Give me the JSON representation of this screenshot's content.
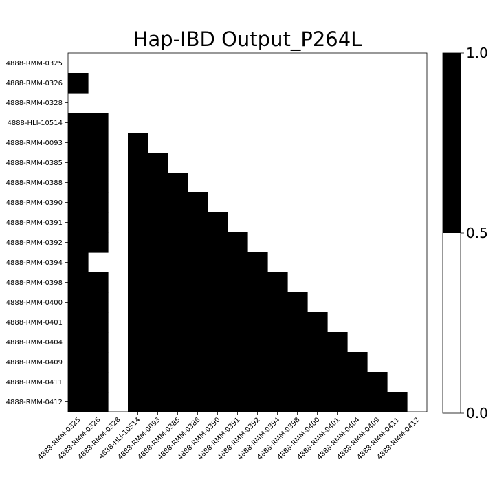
{
  "chart_data": {
    "type": "heatmap",
    "title": "Hap-IBD Output_P264L",
    "labels": [
      "4888-RMM-0325",
      "4888-RMM-0326",
      "4888-RMM-0328",
      "4888-HLI-10514",
      "4888-RMM-0093",
      "4888-RMM-0385",
      "4888-RMM-0388",
      "4888-RMM-0390",
      "4888-RMM-0391",
      "4888-RMM-0392",
      "4888-RMM-0394",
      "4888-RMM-0398",
      "4888-RMM-0400",
      "4888-RMM-0401",
      "4888-RMM-0404",
      "4888-RMM-0409",
      "4888-RMM-0411",
      "4888-RMM-0412"
    ],
    "matrix": [
      [
        0,
        0,
        0,
        0,
        0,
        0,
        0,
        0,
        0,
        0,
        0,
        0,
        0,
        0,
        0,
        0,
        0,
        0
      ],
      [
        1,
        0,
        0,
        0,
        0,
        0,
        0,
        0,
        0,
        0,
        0,
        0,
        0,
        0,
        0,
        0,
        0,
        0
      ],
      [
        0,
        0,
        0,
        0,
        0,
        0,
        0,
        0,
        0,
        0,
        0,
        0,
        0,
        0,
        0,
        0,
        0,
        0
      ],
      [
        1,
        1,
        0,
        0,
        0,
        0,
        0,
        0,
        0,
        0,
        0,
        0,
        0,
        0,
        0,
        0,
        0,
        0
      ],
      [
        1,
        1,
        0,
        1,
        0,
        0,
        0,
        0,
        0,
        0,
        0,
        0,
        0,
        0,
        0,
        0,
        0,
        0
      ],
      [
        1,
        1,
        0,
        1,
        1,
        0,
        0,
        0,
        0,
        0,
        0,
        0,
        0,
        0,
        0,
        0,
        0,
        0
      ],
      [
        1,
        1,
        0,
        1,
        1,
        1,
        0,
        0,
        0,
        0,
        0,
        0,
        0,
        0,
        0,
        0,
        0,
        0
      ],
      [
        1,
        1,
        0,
        1,
        1,
        1,
        1,
        0,
        0,
        0,
        0,
        0,
        0,
        0,
        0,
        0,
        0,
        0
      ],
      [
        1,
        1,
        0,
        1,
        1,
        1,
        1,
        1,
        0,
        0,
        0,
        0,
        0,
        0,
        0,
        0,
        0,
        0
      ],
      [
        1,
        1,
        0,
        1,
        1,
        1,
        1,
        1,
        1,
        0,
        0,
        0,
        0,
        0,
        0,
        0,
        0,
        0
      ],
      [
        1,
        0,
        0,
        1,
        1,
        1,
        1,
        1,
        1,
        1,
        0,
        0,
        0,
        0,
        0,
        0,
        0,
        0
      ],
      [
        1,
        1,
        0,
        1,
        1,
        1,
        1,
        1,
        1,
        1,
        1,
        0,
        0,
        0,
        0,
        0,
        0,
        0
      ],
      [
        1,
        1,
        0,
        1,
        1,
        1,
        1,
        1,
        1,
        1,
        1,
        1,
        0,
        0,
        0,
        0,
        0,
        0
      ],
      [
        1,
        1,
        0,
        1,
        1,
        1,
        1,
        1,
        1,
        1,
        1,
        1,
        1,
        0,
        0,
        0,
        0,
        0
      ],
      [
        1,
        1,
        0,
        1,
        1,
        1,
        1,
        1,
        1,
        1,
        1,
        1,
        1,
        1,
        0,
        0,
        0,
        0
      ],
      [
        1,
        1,
        0,
        1,
        1,
        1,
        1,
        1,
        1,
        1,
        1,
        1,
        1,
        1,
        1,
        0,
        0,
        0
      ],
      [
        1,
        1,
        0,
        1,
        1,
        1,
        1,
        1,
        1,
        1,
        1,
        1,
        1,
        1,
        1,
        1,
        0,
        0
      ],
      [
        1,
        1,
        0,
        1,
        1,
        1,
        1,
        1,
        1,
        1,
        1,
        1,
        1,
        1,
        1,
        1,
        1,
        0
      ]
    ],
    "colorbar": {
      "ticks": [
        0.0,
        0.5,
        1.0
      ],
      "tick_labels": [
        "0.0",
        "0.5",
        "1.0"
      ],
      "bins": [
        {
          "from": 0.0,
          "to": 0.5,
          "color": "#ffffff"
        },
        {
          "from": 0.5,
          "to": 1.0,
          "color": "#000000"
        }
      ]
    },
    "colors": {
      "one": "#000000",
      "zero": "#ffffff"
    }
  }
}
